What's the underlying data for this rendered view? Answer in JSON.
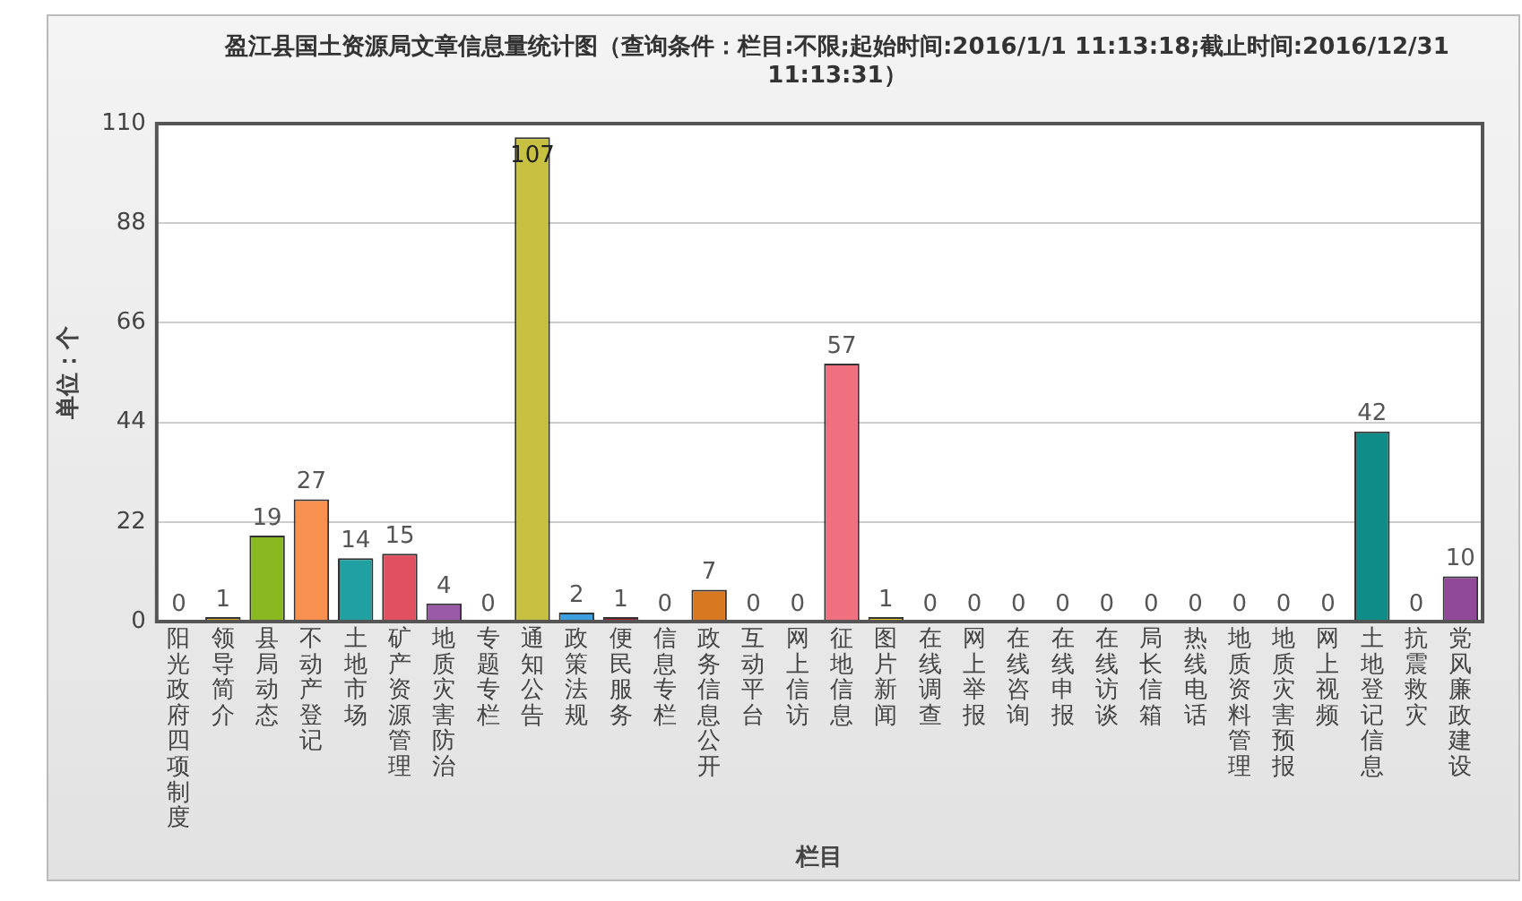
{
  "chart_data": {
    "type": "bar",
    "title": "盈江县国土资源局文章信息量统计图（查询条件：栏目:不限;起始时间:2016/1/1 11:13:18;截止时间:2016/12/31 11:13:31）",
    "xlabel": "栏目",
    "ylabel": "单位：个",
    "categories": [
      "阳光政府四项制度",
      "领导简介",
      "县局动态",
      "不动产登记",
      "土地市场",
      "矿产资源管理",
      "地质灾害防治",
      "专题专栏",
      "通知公告",
      "政策法规",
      "便民服务",
      "信息专栏",
      "政务信息公开",
      "互动平台",
      "网上信访",
      "征地信息",
      "图片新闻",
      "在线调查",
      "网上举报",
      "在线咨询",
      "在线申报",
      "在线访谈",
      "局长信箱",
      "热线电话",
      "地质资料管理",
      "地质灾害预报",
      "网上视频",
      "土地登记信息",
      "抗震救灾",
      "党风廉政建设"
    ],
    "values": [
      0,
      1,
      19,
      27,
      14,
      15,
      4,
      0,
      107,
      2,
      1,
      0,
      7,
      0,
      0,
      57,
      1,
      0,
      0,
      0,
      0,
      0,
      0,
      0,
      0,
      0,
      0,
      42,
      0,
      10
    ],
    "colors": [
      "#2a8ad0",
      "#e0b020",
      "#8ab820",
      "#f89050",
      "#20a0a0",
      "#e05060",
      "#9a5aa8",
      "#2a8ad0",
      "#c8c040",
      "#3aa0e0",
      "#b02030",
      "#2a8ad0",
      "#d87820",
      "#2a8ad0",
      "#2a8ad0",
      "#f07080",
      "#e8d020",
      "#2a8ad0",
      "#2a8ad0",
      "#2a8ad0",
      "#2a8ad0",
      "#2a8ad0",
      "#2a8ad0",
      "#2a8ad0",
      "#2a8ad0",
      "#2a8ad0",
      "#2a8ad0",
      "#108c88",
      "#2a8ad0",
      "#904898"
    ],
    "ylim": [
      0,
      110
    ],
    "yticks": [
      0,
      22,
      44,
      66,
      88,
      110
    ],
    "grid": "y",
    "data_labels": true,
    "legend": false
  }
}
